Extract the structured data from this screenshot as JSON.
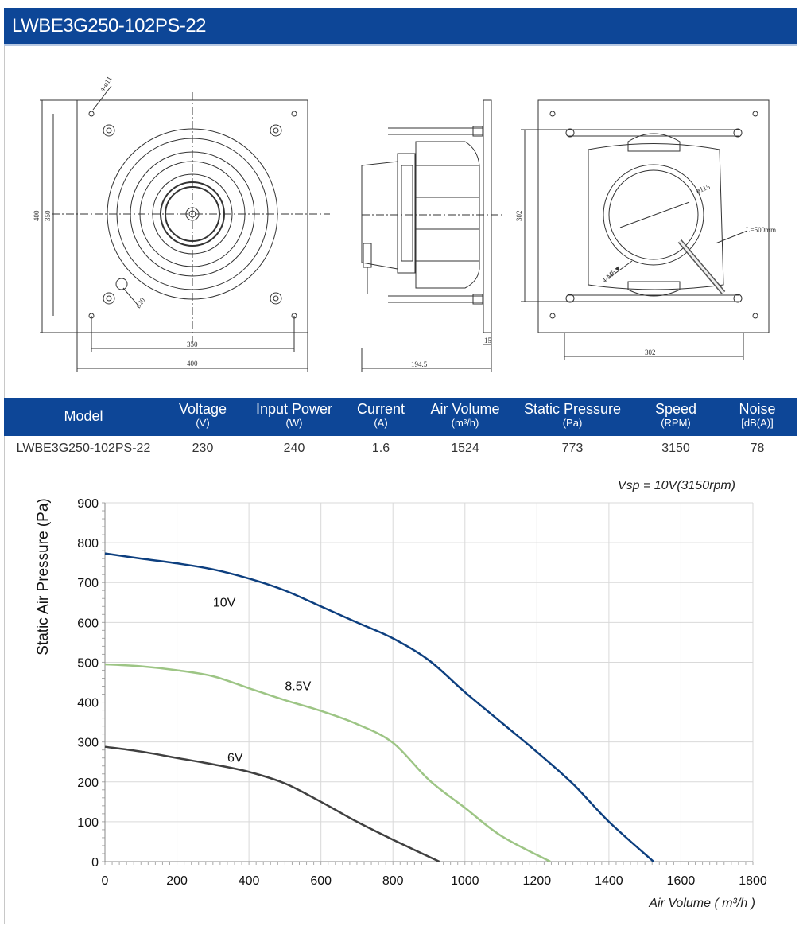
{
  "title": "LWBE3G250-102PS-22",
  "drawings": {
    "front": {
      "dim_hole": "4-ø11",
      "dim_height": "400",
      "dim_inner_height": "350",
      "dim_width_inner": "350",
      "dim_width": "400",
      "dim_hole_small": "ø20"
    },
    "side": {
      "dim_depth": "194.5",
      "dim_flange": "15"
    },
    "back": {
      "dim_height": "302",
      "dim_width": "302",
      "dim_diameter": "ø115",
      "dim_cable": "L=500mm",
      "dim_screws": "4-M6▼"
    }
  },
  "table": {
    "headers": [
      {
        "name": "Model",
        "unit": ""
      },
      {
        "name": "Voltage",
        "unit": "(V)"
      },
      {
        "name": "Input Power",
        "unit": "(W)"
      },
      {
        "name": "Current",
        "unit": "(A)"
      },
      {
        "name": "Air Volume",
        "unit": "(m³/h)"
      },
      {
        "name": "Static Pressure",
        "unit": "(Pa)"
      },
      {
        "name": "Speed",
        "unit": "(RPM)"
      },
      {
        "name": "Noise",
        "unit": "[dB(A)]"
      }
    ],
    "row": [
      "LWBE3G250-102PS-22",
      "230",
      "240",
      "1.6",
      "1524",
      "773",
      "3150",
      "78"
    ]
  },
  "chart_data": {
    "type": "line",
    "title": "Vsp = 10V(3150rpm)",
    "xlabel": "Air Volume ( m³/h )",
    "ylabel": "Static Air Pressure  (Pa)",
    "xlim": [
      0,
      1800
    ],
    "ylim": [
      0,
      900
    ],
    "xticks": [
      0,
      200,
      400,
      600,
      800,
      1000,
      1200,
      1400,
      1600,
      1800
    ],
    "yticks": [
      0,
      100,
      200,
      300,
      400,
      500,
      600,
      700,
      800,
      900
    ],
    "grid": true,
    "series": [
      {
        "name": "10V",
        "color": "#0d3f7f",
        "x": [
          0,
          100,
          200,
          300,
          400,
          500,
          600,
          700,
          800,
          900,
          1000,
          1100,
          1200,
          1300,
          1400,
          1524
        ],
        "y": [
          773,
          760,
          748,
          733,
          710,
          680,
          640,
          600,
          560,
          505,
          425,
          350,
          275,
          195,
          100,
          0
        ]
      },
      {
        "name": "8.5V",
        "color": "#9dc585",
        "x": [
          0,
          100,
          200,
          300,
          400,
          500,
          600,
          700,
          800,
          900,
          1000,
          1100,
          1237
        ],
        "y": [
          495,
          490,
          480,
          465,
          435,
          405,
          378,
          345,
          298,
          205,
          135,
          65,
          0
        ]
      },
      {
        "name": "6V",
        "color": "#404040",
        "x": [
          0,
          100,
          200,
          300,
          400,
          500,
          600,
          700,
          800,
          929
        ],
        "y": [
          288,
          276,
          260,
          244,
          225,
          196,
          150,
          100,
          55,
          0
        ]
      }
    ]
  }
}
